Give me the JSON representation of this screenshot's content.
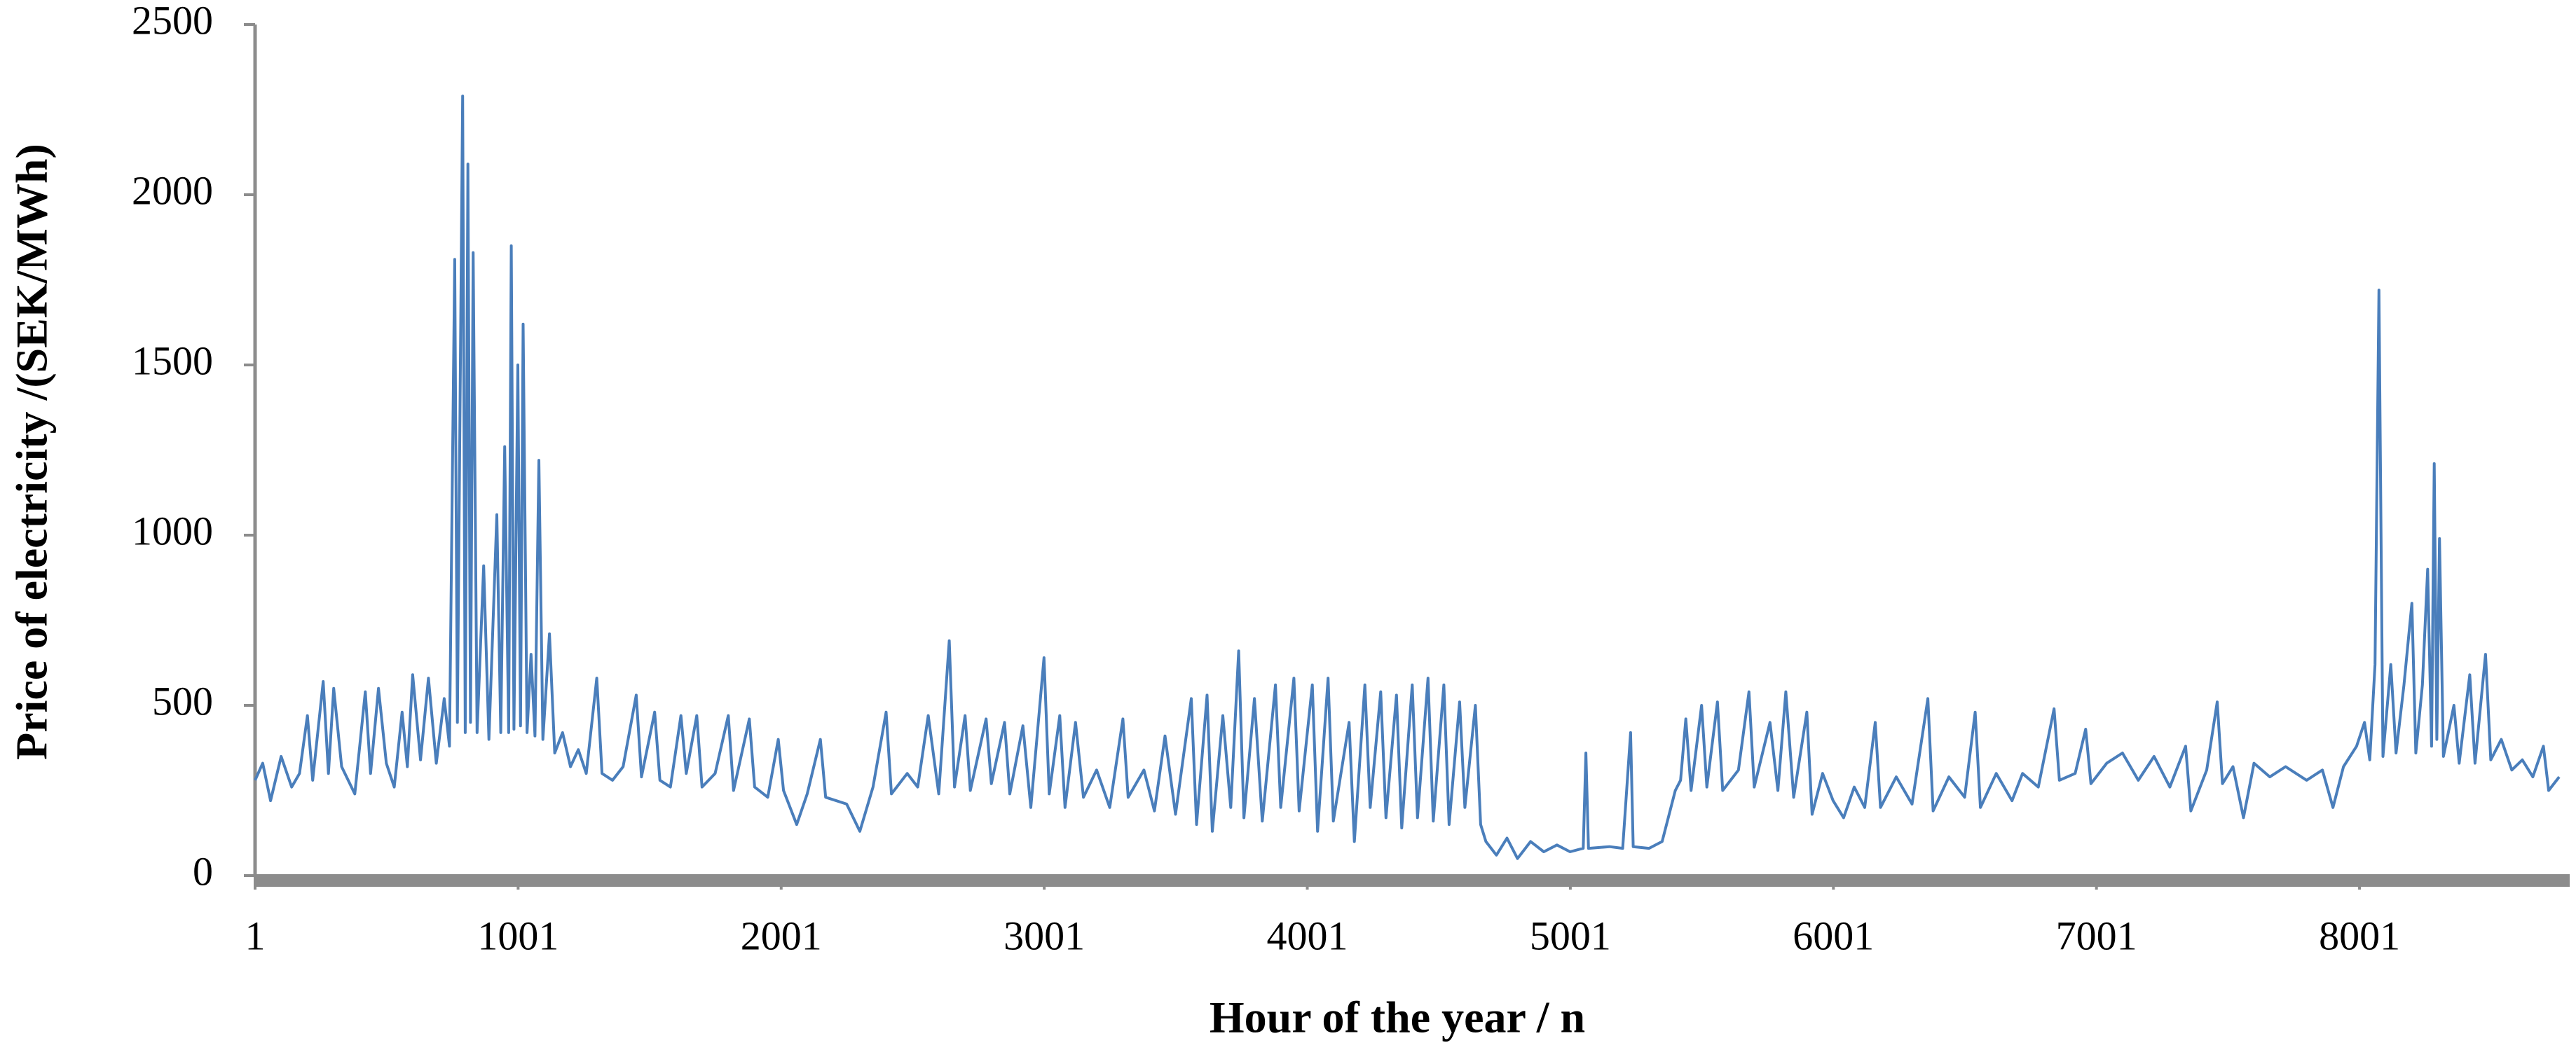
{
  "chart_data": {
    "type": "line",
    "xlabel": "Hour of the year / n",
    "ylabel": "Price of electricity /(SEK/MWh)",
    "color": "#4a7ebb",
    "xlim": [
      1,
      8800
    ],
    "xticks": [
      1,
      1001,
      2001,
      3001,
      4001,
      5001,
      6001,
      7001,
      8001
    ],
    "ylim": [
      0,
      2500
    ],
    "yticks": [
      0,
      500,
      1000,
      1500,
      2000,
      2500
    ],
    "grid": false,
    "x": [
      1,
      30,
      60,
      100,
      140,
      170,
      200,
      220,
      260,
      280,
      300,
      330,
      380,
      420,
      440,
      470,
      500,
      530,
      560,
      580,
      600,
      630,
      660,
      690,
      720,
      740,
      760,
      770,
      790,
      800,
      810,
      820,
      830,
      845,
      870,
      890,
      920,
      935,
      950,
      965,
      975,
      985,
      1000,
      1010,
      1020,
      1035,
      1050,
      1065,
      1080,
      1095,
      1120,
      1140,
      1170,
      1200,
      1230,
      1260,
      1300,
      1320,
      1360,
      1400,
      1450,
      1470,
      1520,
      1540,
      1580,
      1620,
      1640,
      1680,
      1700,
      1750,
      1800,
      1820,
      1880,
      1900,
      1950,
      1990,
      2010,
      2060,
      2100,
      2150,
      2170,
      2250,
      2300,
      2350,
      2400,
      2420,
      2480,
      2520,
      2560,
      2600,
      2640,
      2660,
      2700,
      2720,
      2780,
      2800,
      2850,
      2870,
      2920,
      2950,
      3000,
      3020,
      3060,
      3080,
      3120,
      3150,
      3200,
      3250,
      3300,
      3320,
      3380,
      3420,
      3460,
      3500,
      3560,
      3580,
      3620,
      3640,
      3680,
      3710,
      3740,
      3760,
      3800,
      3830,
      3880,
      3900,
      3950,
      3970,
      4020,
      4040,
      4080,
      4100,
      4160,
      4180,
      4220,
      4240,
      4280,
      4300,
      4340,
      4360,
      4400,
      4420,
      4460,
      4480,
      4520,
      4540,
      4580,
      4600,
      4640,
      4660,
      4680,
      4720,
      4760,
      4800,
      4850,
      4900,
      4950,
      5000,
      5050,
      5060,
      5070,
      5150,
      5200,
      5230,
      5240,
      5300,
      5350,
      5400,
      5420,
      5440,
      5460,
      5500,
      5520,
      5560,
      5580,
      5640,
      5680,
      5700,
      5760,
      5790,
      5820,
      5850,
      5900,
      5920,
      5960,
      6000,
      6040,
      6080,
      6120,
      6160,
      6180,
      6240,
      6300,
      6360,
      6380,
      6440,
      6500,
      6540,
      6560,
      6620,
      6680,
      6720,
      6780,
      6840,
      6860,
      6920,
      6960,
      6980,
      7040,
      7100,
      7160,
      7220,
      7280,
      7340,
      7360,
      7420,
      7460,
      7480,
      7520,
      7560,
      7600,
      7660,
      7720,
      7800,
      7860,
      7900,
      7940,
      7990,
      8020,
      8040,
      8060,
      8075,
      8090,
      8120,
      8140,
      8170,
      8200,
      8215,
      8240,
      8260,
      8275,
      8285,
      8295,
      8305,
      8320,
      8360,
      8380,
      8420,
      8440,
      8480,
      8500,
      8540,
      8580,
      8620,
      8660,
      8700,
      8720,
      8760
    ],
    "values": [
      280,
      330,
      220,
      350,
      260,
      300,
      470,
      280,
      570,
      300,
      550,
      320,
      240,
      540,
      300,
      550,
      330,
      260,
      480,
      320,
      590,
      340,
      580,
      330,
      520,
      380,
      1810,
      450,
      2290,
      420,
      2090,
      450,
      1830,
      420,
      910,
      400,
      1060,
      420,
      1260,
      420,
      1850,
      430,
      1500,
      440,
      1620,
      420,
      650,
      410,
      1220,
      400,
      710,
      360,
      420,
      320,
      370,
      300,
      580,
      300,
      280,
      320,
      530,
      290,
      480,
      280,
      260,
      470,
      300,
      470,
      260,
      300,
      470,
      250,
      460,
      260,
      230,
      400,
      250,
      150,
      240,
      400,
      230,
      210,
      130,
      260,
      480,
      240,
      300,
      260,
      470,
      240,
      690,
      260,
      470,
      250,
      460,
      270,
      450,
      240,
      440,
      200,
      640,
      240,
      470,
      200,
      450,
      230,
      310,
      200,
      460,
      230,
      310,
      190,
      410,
      180,
      520,
      150,
      530,
      130,
      470,
      200,
      660,
      170,
      520,
      160,
      560,
      200,
      580,
      190,
      560,
      130,
      580,
      160,
      450,
      100,
      560,
      200,
      540,
      170,
      530,
      140,
      560,
      170,
      580,
      160,
      560,
      150,
      510,
      200,
      500,
      150,
      100,
      60,
      110,
      50,
      100,
      70,
      90,
      70,
      80,
      360,
      80,
      85,
      80,
      420,
      85,
      80,
      100,
      250,
      280,
      460,
      250,
      500,
      260,
      510,
      250,
      310,
      540,
      260,
      450,
      250,
      540,
      230,
      480,
      180,
      300,
      220,
      170,
      260,
      200,
      450,
      200,
      290,
      210,
      520,
      190,
      290,
      230,
      480,
      200,
      300,
      220,
      300,
      260,
      490,
      280,
      300,
      430,
      270,
      330,
      360,
      280,
      350,
      260,
      380,
      190,
      310,
      510,
      270,
      320,
      170,
      330,
      290,
      320,
      280,
      310,
      200,
      320,
      380,
      450,
      340,
      620,
      1720,
      350,
      620,
      360,
      560,
      800,
      360,
      560,
      900,
      380,
      1210,
      400,
      990,
      350,
      500,
      330,
      590,
      330,
      650,
      340,
      400,
      310,
      340,
      290,
      380,
      250,
      290
    ]
  }
}
